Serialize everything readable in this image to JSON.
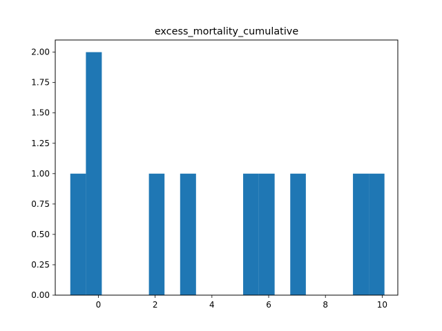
{
  "chart_data": {
    "type": "bar",
    "title": "excess_mortality_cumulative",
    "xlabel": "",
    "ylabel": "",
    "xlim": [
      -1.52,
      10.55
    ],
    "ylim": [
      0,
      2.1
    ],
    "bar_color": "#1f77b4",
    "bins": [
      {
        "x0": -0.99,
        "x1": -0.44,
        "value": 1
      },
      {
        "x0": -0.44,
        "x1": 0.12,
        "value": 2
      },
      {
        "x0": 0.12,
        "x1": 0.67,
        "value": 0
      },
      {
        "x0": 0.67,
        "x1": 1.22,
        "value": 0
      },
      {
        "x0": 1.22,
        "x1": 1.78,
        "value": 0
      },
      {
        "x0": 1.78,
        "x1": 2.33,
        "value": 1
      },
      {
        "x0": 2.33,
        "x1": 2.88,
        "value": 0
      },
      {
        "x0": 2.88,
        "x1": 3.44,
        "value": 1
      },
      {
        "x0": 3.44,
        "x1": 3.99,
        "value": 0
      },
      {
        "x0": 3.99,
        "x1": 4.55,
        "value": 0
      },
      {
        "x0": 4.55,
        "x1": 5.1,
        "value": 0
      },
      {
        "x0": 5.1,
        "x1": 5.65,
        "value": 1
      },
      {
        "x0": 5.65,
        "x1": 6.21,
        "value": 1
      },
      {
        "x0": 6.21,
        "x1": 6.76,
        "value": 0
      },
      {
        "x0": 6.76,
        "x1": 7.31,
        "value": 1
      },
      {
        "x0": 7.31,
        "x1": 7.87,
        "value": 0
      },
      {
        "x0": 7.87,
        "x1": 8.42,
        "value": 0
      },
      {
        "x0": 8.42,
        "x1": 8.97,
        "value": 0
      },
      {
        "x0": 8.97,
        "x1": 9.53,
        "value": 1
      },
      {
        "x0": 9.53,
        "x1": 10.08,
        "value": 1
      }
    ],
    "x_ticks": [
      0,
      2,
      4,
      6,
      8,
      10
    ],
    "x_tick_labels": [
      "0",
      "2",
      "4",
      "6",
      "8",
      "10"
    ],
    "y_ticks": [
      0,
      0.25,
      0.5,
      0.75,
      1.0,
      1.25,
      1.5,
      1.75,
      2.0
    ],
    "y_tick_labels": [
      "0.00",
      "0.25",
      "0.50",
      "0.75",
      "1.00",
      "1.25",
      "1.50",
      "1.75",
      "2.00"
    ],
    "grid": false,
    "legend": "none"
  }
}
